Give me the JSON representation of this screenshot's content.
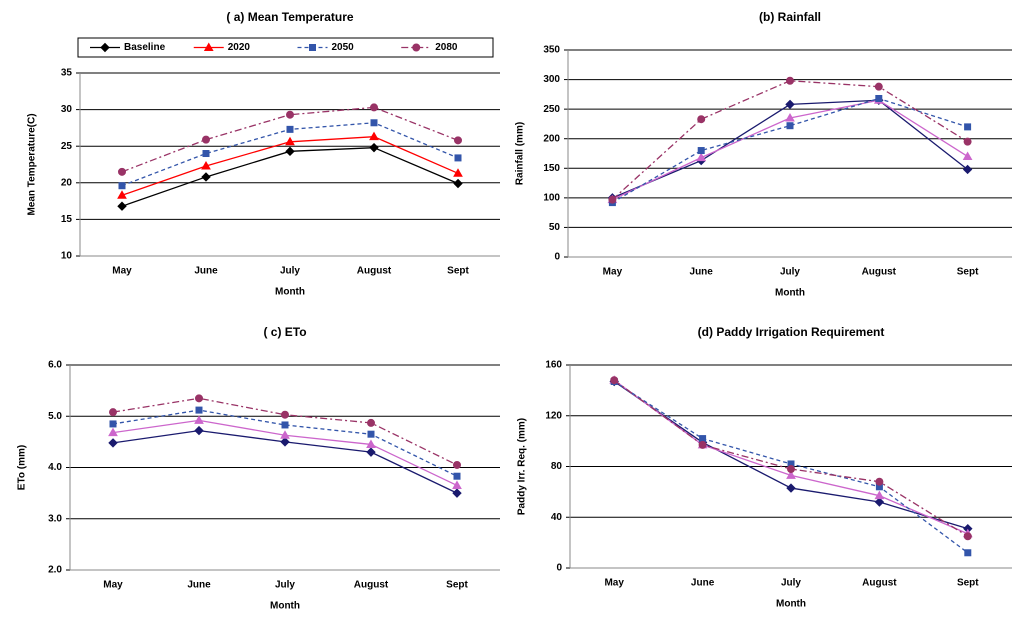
{
  "chart_data": [
    {
      "type": "line",
      "title": "( a) Mean Temperature",
      "xlabel": "Month",
      "ylabel": "Mean Temperature(C)",
      "categories": [
        "May",
        "June",
        "July",
        "August",
        "Sept"
      ],
      "ylim": [
        10,
        35
      ],
      "yticks": [
        10,
        15,
        20,
        25,
        30,
        35
      ],
      "grid": true,
      "legend": "top",
      "series": [
        {
          "name": "Baseline",
          "color": "#000000",
          "marker": "diamond",
          "dash": "solid",
          "values": [
            16.8,
            20.8,
            24.3,
            24.8,
            19.9
          ]
        },
        {
          "name": "2020",
          "color": "#ff0000",
          "marker": "triangle",
          "dash": "solid",
          "values": [
            18.3,
            22.3,
            25.6,
            26.3,
            21.3
          ]
        },
        {
          "name": "2050",
          "color": "#3355aa",
          "marker": "square",
          "dash": "dash",
          "values": [
            19.6,
            24.0,
            27.3,
            28.2,
            23.4
          ]
        },
        {
          "name": "2080",
          "color": "#993366",
          "marker": "circle",
          "dash": "dashdot",
          "values": [
            21.5,
            25.9,
            29.3,
            30.3,
            25.8
          ]
        }
      ]
    },
    {
      "type": "line",
      "title": "(b) Rainfall",
      "xlabel": "Month",
      "ylabel": "Rainfall (mm)",
      "categories": [
        "May",
        "June",
        "July",
        "August",
        "Sept"
      ],
      "ylim": [
        0,
        350
      ],
      "yticks": [
        0,
        50,
        100,
        150,
        200,
        250,
        300,
        350
      ],
      "grid": true,
      "series": [
        {
          "color": "#1a1a6e",
          "marker": "diamond",
          "dash": "solid",
          "values": [
            100,
            163,
            258,
            265,
            148
          ]
        },
        {
          "color": "#cc66cc",
          "marker": "triangle",
          "dash": "solid",
          "values": [
            97,
            168,
            235,
            265,
            170
          ]
        },
        {
          "color": "#3355aa",
          "marker": "square",
          "dash": "dash",
          "values": [
            92,
            180,
            222,
            268,
            220
          ]
        },
        {
          "color": "#993366",
          "marker": "circle",
          "dash": "dashdot",
          "values": [
            97,
            233,
            298,
            288,
            195
          ]
        }
      ]
    },
    {
      "type": "line",
      "title": "( c) ETo",
      "xlabel": "Month",
      "ylabel": "ETo (mm)",
      "categories": [
        "May",
        "June",
        "July",
        "August",
        "Sept"
      ],
      "ylim": [
        2,
        6
      ],
      "yticks": [
        {
          "value": 2,
          "label": "2.0"
        },
        {
          "value": 3,
          "label": "3.0"
        },
        {
          "value": 4,
          "label": "4.0"
        },
        {
          "value": 5,
          "label": "5.0"
        },
        {
          "value": 6,
          "label": "6.0"
        }
      ],
      "grid": true,
      "series": [
        {
          "color": "#1a1a6e",
          "marker": "diamond",
          "dash": "solid",
          "values": [
            4.48,
            4.72,
            4.5,
            4.3,
            3.5
          ]
        },
        {
          "color": "#cc66cc",
          "marker": "triangle",
          "dash": "solid",
          "values": [
            4.68,
            4.92,
            4.63,
            4.45,
            3.65
          ]
        },
        {
          "color": "#3355aa",
          "marker": "square",
          "dash": "dash",
          "values": [
            4.85,
            5.12,
            4.83,
            4.65,
            3.83
          ]
        },
        {
          "color": "#993366",
          "marker": "circle",
          "dash": "dashdot",
          "values": [
            5.08,
            5.35,
            5.03,
            4.87,
            4.05
          ]
        }
      ]
    },
    {
      "type": "line",
      "title": "(d) Paddy Irrigation Requirement",
      "xlabel": "Month",
      "ylabel": "Paddy Irr. Req. (mm)",
      "categories": [
        "May",
        "June",
        "July",
        "August",
        "Sept"
      ],
      "ylim": [
        0,
        160
      ],
      "yticks": [
        0,
        40,
        80,
        120,
        160
      ],
      "grid": true,
      "series": [
        {
          "color": "#1a1a6e",
          "marker": "diamond",
          "dash": "solid",
          "values": [
            147,
            99,
            63,
            52,
            31
          ]
        },
        {
          "color": "#cc66cc",
          "marker": "triangle",
          "dash": "solid",
          "values": [
            148,
            97,
            73,
            57,
            27
          ]
        },
        {
          "color": "#3355aa",
          "marker": "square",
          "dash": "dash",
          "values": [
            147,
            102,
            82,
            64,
            12
          ]
        },
        {
          "color": "#993366",
          "marker": "circle",
          "dash": "dashdot",
          "values": [
            148,
            97,
            78,
            68,
            25
          ]
        }
      ]
    }
  ]
}
